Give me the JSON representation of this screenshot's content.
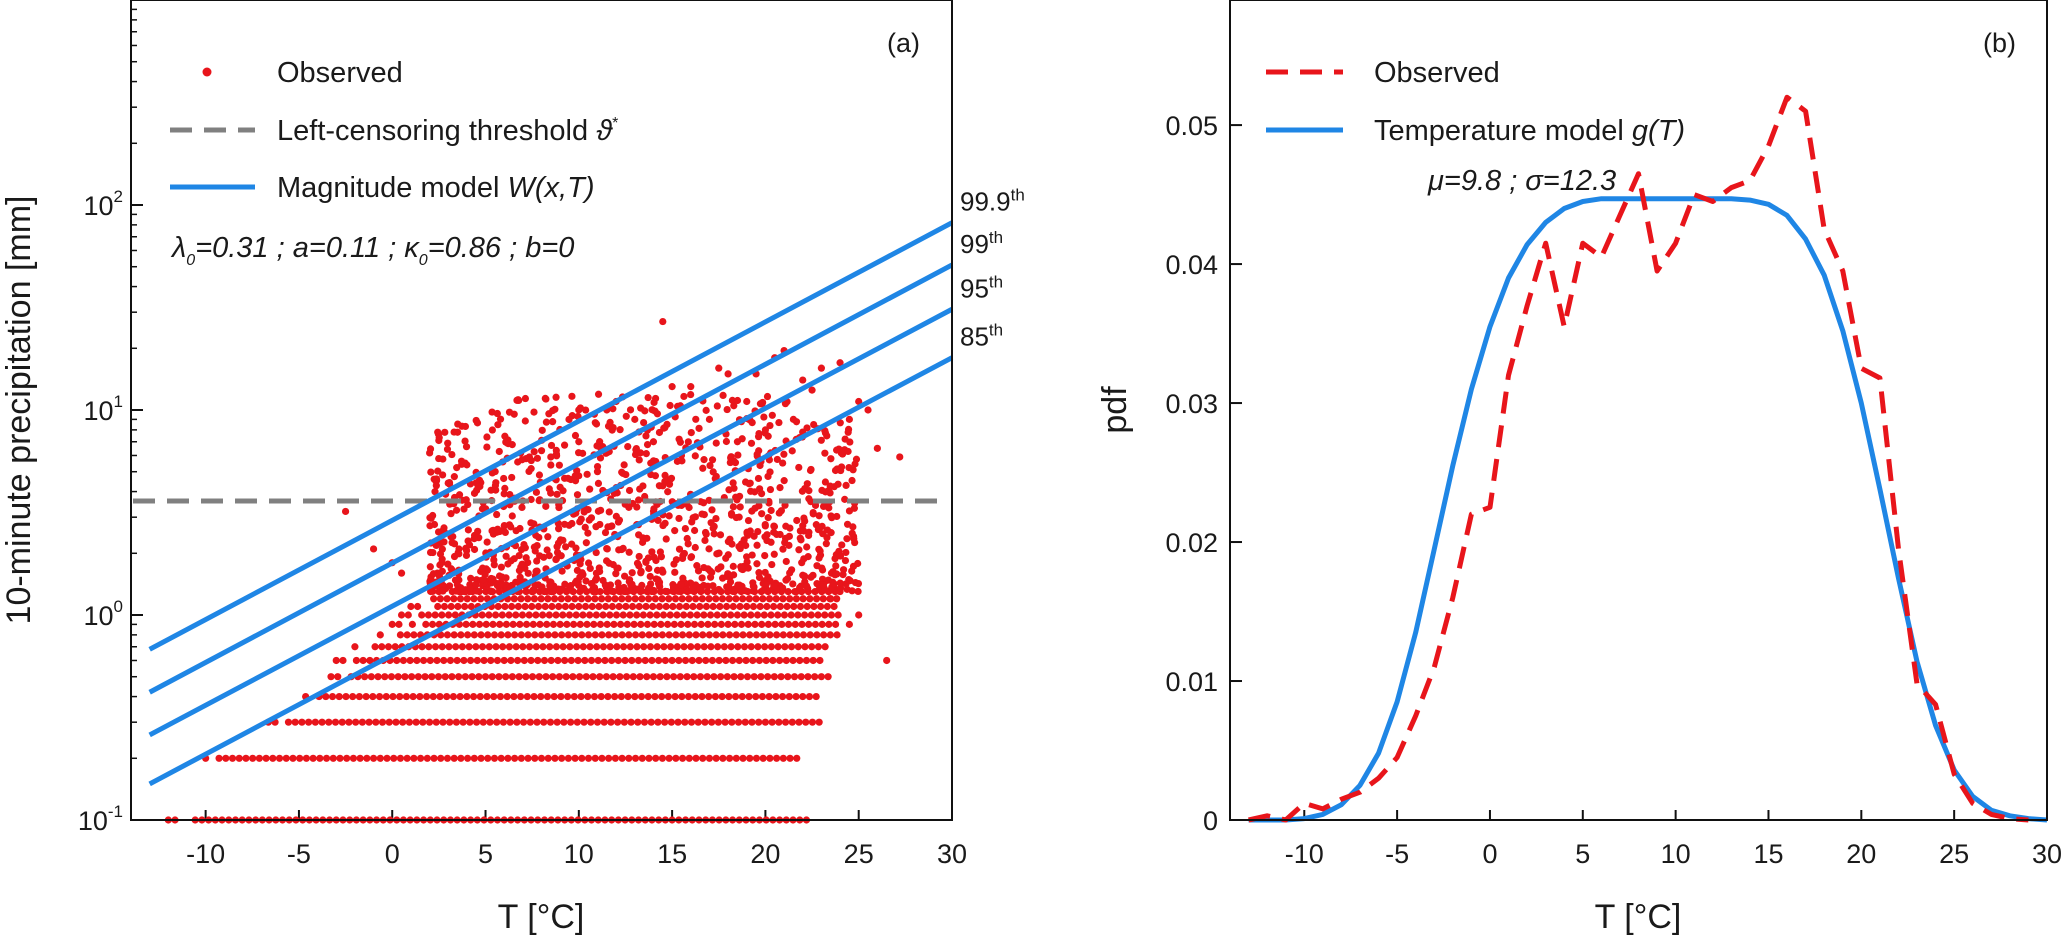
{
  "chart_data": [
    {
      "type": "scatter",
      "panel_label": "(a)",
      "xlabel": "T [°C]",
      "ylabel": "10-minute precipitation [mm]",
      "xlim": [
        -14,
        30
      ],
      "ylim": [
        0.1,
        1000
      ],
      "yscale": "log",
      "x_ticks": [
        -10,
        -5,
        0,
        5,
        10,
        15,
        20,
        25,
        30
      ],
      "x_tick_labels": [
        "-10",
        "-5",
        "0",
        "5",
        "10",
        "15",
        "20",
        "25",
        "30"
      ],
      "y_ticks": [
        0.1,
        1,
        10,
        100
      ],
      "y_tick_labels": [
        {
          "base": "10",
          "exp": "-1"
        },
        {
          "base": "10",
          "exp": "0"
        },
        {
          "base": "10",
          "exp": "1"
        },
        {
          "base": "10",
          "exp": "2"
        }
      ],
      "legend_position": "top-left",
      "legend": {
        "observed": "Observed",
        "threshold": "Left-censoring threshold ",
        "threshold_symbol": "ϑ",
        "threshold_sup": "*",
        "model": "Magnitude model ",
        "model_symbol": "W(x,T)"
      },
      "params_text": {
        "lambda_symbol": "λ",
        "lambda_sub": "0",
        "lambda_val": "=0.31 ; ",
        "a_text": "a=0.11 ; ",
        "kappa_symbol": "κ",
        "kappa_sub": "0",
        "kappa_val": "=0.86 ; b=0"
      },
      "threshold": 3.6,
      "colors": {
        "observed": "#e8151b",
        "model": "#1f86e5",
        "threshold": "#808080"
      },
      "series": [
        {
          "name": "85",
          "label_base": "85",
          "label_sup": "th",
          "x": [
            -13,
            30
          ],
          "y": [
            0.15,
            18
          ]
        },
        {
          "name": "95",
          "label_base": "95",
          "label_sup": "th",
          "x": [
            -13,
            30
          ],
          "y": [
            0.26,
            31
          ]
        },
        {
          "name": "99",
          "label_base": "99",
          "label_sup": "th",
          "x": [
            -13,
            30
          ],
          "y": [
            0.42,
            51
          ]
        },
        {
          "name": "99.9",
          "label_base": "99.9",
          "label_sup": "th",
          "x": [
            -13,
            30
          ],
          "y": [
            0.68,
            82
          ]
        }
      ],
      "observed_levels": [
        {
          "y": 0.1,
          "x_min": -12,
          "x_max": 22.5
        },
        {
          "y": 0.2,
          "x_min": -10,
          "x_max": 22
        },
        {
          "y": 0.3,
          "x_min": -7,
          "x_max": 23
        },
        {
          "y": 0.4,
          "x_min": -5,
          "x_max": 23
        },
        {
          "y": 0.5,
          "x_min": -4,
          "x_max": 23.5
        },
        {
          "y": 0.6,
          "x_min": -3,
          "x_max": 23
        },
        {
          "y": 0.7,
          "x_min": -2,
          "x_max": 23.5
        },
        {
          "y": 0.8,
          "x_min": -1,
          "x_max": 24
        },
        {
          "y": 0.9,
          "x_min": 0,
          "x_max": 24
        },
        {
          "y": 1.0,
          "x_min": 0.5,
          "x_max": 24
        },
        {
          "y": 1.1,
          "x_min": 1,
          "x_max": 24
        },
        {
          "y": 1.2,
          "x_min": 1.5,
          "x_max": 24
        },
        {
          "y": 1.3,
          "x_min": 2.5,
          "x_max": 24
        }
      ],
      "observed_points": [
        {
          "x": 14.5,
          "y": 27
        },
        {
          "x": 21,
          "y": 19.5
        },
        {
          "x": 20.5,
          "y": 18
        },
        {
          "x": 17.5,
          "y": 16
        },
        {
          "x": 18,
          "y": 15
        },
        {
          "x": 19.5,
          "y": 15
        },
        {
          "x": 23,
          "y": 16
        },
        {
          "x": 24,
          "y": 17
        },
        {
          "x": 22,
          "y": 14
        },
        {
          "x": 16,
          "y": 13
        },
        {
          "x": 15,
          "y": 13
        },
        {
          "x": 12,
          "y": 11
        },
        {
          "x": 11.5,
          "y": 10
        },
        {
          "x": 13,
          "y": 9
        },
        {
          "x": 25,
          "y": 11
        },
        {
          "x": 25.5,
          "y": 10
        },
        {
          "x": 26,
          "y": 6.5
        },
        {
          "x": 27.2,
          "y": 5.9
        },
        {
          "x": 26.5,
          "y": 0.6
        },
        {
          "x": 8.5,
          "y": 5.9
        },
        {
          "x": 4,
          "y": 5.4
        },
        {
          "x": 3,
          "y": 4.4
        },
        {
          "x": 9,
          "y": 4.2
        },
        {
          "x": 6,
          "y": 3.9
        },
        {
          "x": 7,
          "y": 3.6
        },
        {
          "x": -2.5,
          "y": 3.2
        },
        {
          "x": -1,
          "y": 2.1
        },
        {
          "x": 0,
          "y": 1.8
        },
        {
          "x": 0.5,
          "y": 1.6
        },
        {
          "x": 5,
          "y": 3.3
        },
        {
          "x": 10,
          "y": 7
        },
        {
          "x": 14,
          "y": 7
        },
        {
          "x": 19,
          "y": 11
        },
        {
          "x": 22.5,
          "y": 12.5
        },
        {
          "x": 17,
          "y": 9
        },
        {
          "x": 20,
          "y": 8
        },
        {
          "x": 24.5,
          "y": 9
        },
        {
          "x": 25,
          "y": 1.0
        },
        {
          "x": 24.5,
          "y": 0.9
        },
        {
          "x": 23.5,
          "y": 1.2
        },
        {
          "x": 11,
          "y": 5
        },
        {
          "x": 15.5,
          "y": 6
        },
        {
          "x": 18.5,
          "y": 7
        },
        {
          "x": 21.5,
          "y": 9
        }
      ],
      "observed_cloud": {
        "x_min": 2,
        "x_max": 25,
        "y_min": 1.3,
        "y_max": 12
      }
    },
    {
      "type": "line",
      "panel_label": "(b)",
      "xlabel": "T [°C]",
      "ylabel": "pdf",
      "xlim": [
        -14,
        30
      ],
      "ylim": [
        0,
        0.059
      ],
      "x_ticks": [
        -10,
        -5,
        0,
        5,
        10,
        15,
        20,
        25,
        30
      ],
      "x_tick_labels": [
        "-10",
        "-5",
        "0",
        "5",
        "10",
        "15",
        "20",
        "25",
        "30"
      ],
      "y_ticks": [
        0,
        0.01,
        0.02,
        0.03,
        0.04,
        0.05
      ],
      "y_tick_labels": [
        "0",
        "0.01",
        "0.02",
        "0.03",
        "0.04",
        "0.05"
      ],
      "legend_position": "top-left",
      "legend": {
        "observed": "Observed",
        "model": "Temperature model ",
        "model_symbol": "g(T)"
      },
      "params_text": "μ=9.8 ; σ=12.3",
      "colors": {
        "observed": "#e8151b",
        "model": "#1f86e5"
      },
      "series": [
        {
          "name": "Observed",
          "x": [
            -13,
            -12,
            -11,
            -10,
            -9,
            -8,
            -7,
            -6,
            -5,
            -4,
            -3,
            -2,
            -1,
            0,
            1,
            2,
            3,
            4,
            5,
            6,
            7,
            8,
            9,
            10,
            11,
            12,
            13,
            14,
            15,
            16,
            17,
            18,
            19,
            20,
            21,
            22,
            23,
            24,
            25,
            26,
            27,
            28,
            29
          ],
          "y": [
            0,
            0.0003,
            0,
            0.0012,
            0.0008,
            0.0015,
            0.002,
            0.003,
            0.0045,
            0.0075,
            0.011,
            0.016,
            0.022,
            0.0225,
            0.032,
            0.037,
            0.0415,
            0.0355,
            0.0415,
            0.0405,
            0.0435,
            0.0465,
            0.0395,
            0.0415,
            0.045,
            0.0445,
            0.0455,
            0.046,
            0.0485,
            0.052,
            0.051,
            0.0425,
            0.0395,
            0.0325,
            0.0318,
            0.0195,
            0.0098,
            0.0083,
            0.0033,
            0.0012,
            0.0004,
            0.0001,
            0
          ]
        },
        {
          "name": "Temperature model g(T)",
          "x": [
            -13,
            -12,
            -11,
            -10,
            -9,
            -8,
            -7,
            -6,
            -5,
            -4,
            -3,
            -2,
            -1,
            0,
            1,
            2,
            3,
            4,
            5,
            6,
            7,
            8,
            9,
            10,
            11,
            12,
            13,
            14,
            15,
            16,
            17,
            18,
            19,
            20,
            21,
            22,
            23,
            24,
            25,
            26,
            27,
            28,
            29,
            30
          ],
          "y": [
            0,
            0,
            0,
            0.0001,
            0.0004,
            0.0011,
            0.0025,
            0.0048,
            0.0085,
            0.0135,
            0.0195,
            0.0255,
            0.031,
            0.0355,
            0.039,
            0.0414,
            0.043,
            0.044,
            0.0445,
            0.0447,
            0.0447,
            0.0447,
            0.0447,
            0.0447,
            0.0447,
            0.0447,
            0.0447,
            0.0446,
            0.0443,
            0.0435,
            0.0418,
            0.0392,
            0.0352,
            0.03,
            0.0238,
            0.0174,
            0.0114,
            0.0068,
            0.0036,
            0.0017,
            0.0007,
            0.0003,
            0.0001,
            0
          ]
        }
      ]
    }
  ]
}
